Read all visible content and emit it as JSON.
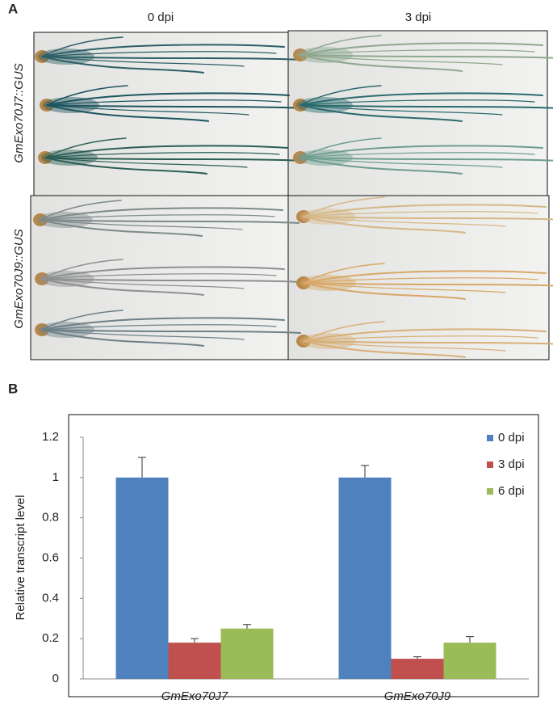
{
  "panel_a": {
    "label": "A",
    "columns": [
      "0 dpi",
      "3 dpi"
    ],
    "rows": [
      "GmExo70J7::GUS",
      "GmExo70J9::GUS"
    ]
  },
  "panel_b": {
    "label": "B"
  },
  "chart_data": {
    "type": "bar",
    "ylabel": "Relative transcript level",
    "categories": [
      "GmExo70J7",
      "GmExo70J9"
    ],
    "series": [
      {
        "name": "0 dpi",
        "color": "#4f81bd",
        "values": [
          1.0,
          1.0
        ],
        "errors": [
          0.1,
          0.06
        ]
      },
      {
        "name": "3 dpi",
        "color": "#c0504d",
        "values": [
          0.18,
          0.1
        ],
        "errors": [
          0.02,
          0.01
        ]
      },
      {
        "name": "6 dpi",
        "color": "#9bbb59",
        "values": [
          0.25,
          0.18
        ],
        "errors": [
          0.02,
          0.03
        ]
      }
    ],
    "ylim": [
      0,
      1.2
    ],
    "yticks": [
      0,
      0.2,
      0.4,
      0.6,
      0.8,
      1,
      1.2
    ],
    "grid": false,
    "legend": "top-right"
  }
}
